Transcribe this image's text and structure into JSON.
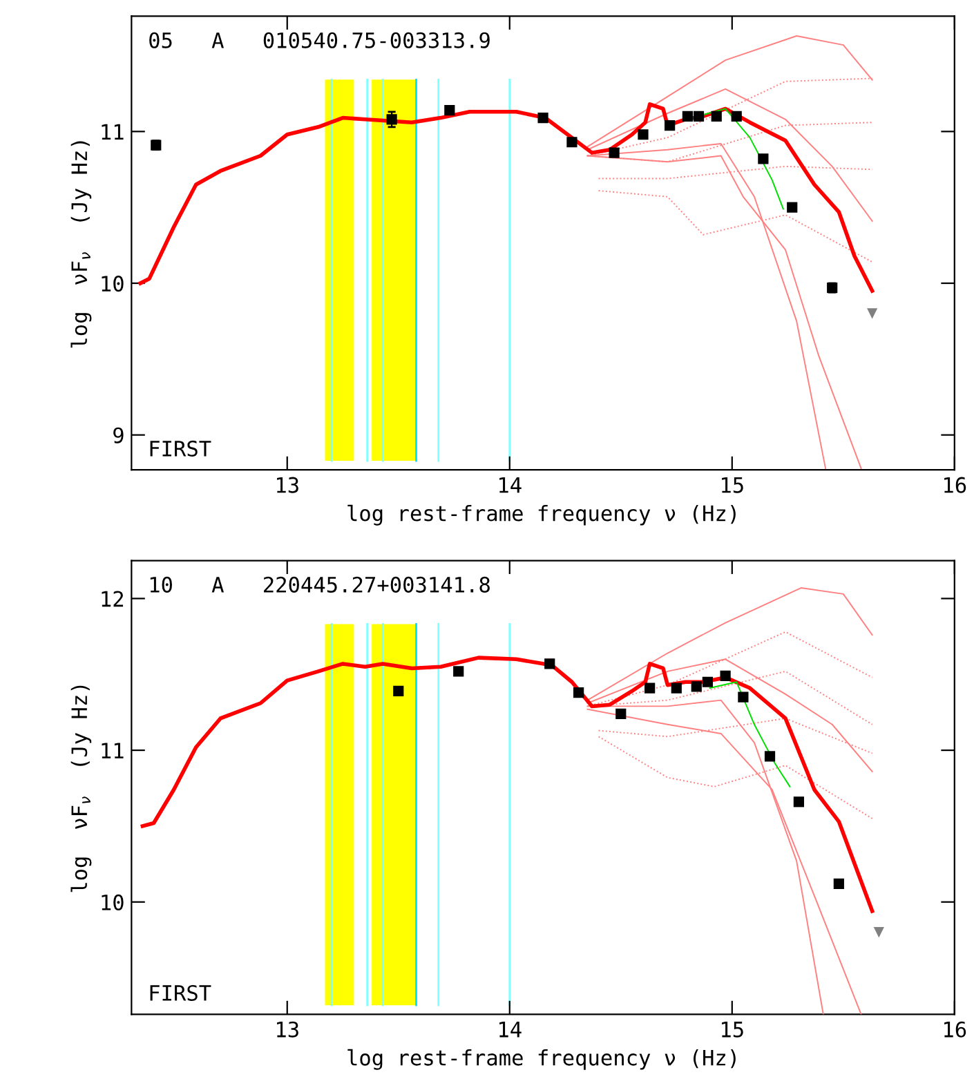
{
  "chart_data": [
    {
      "type": "line",
      "title": "05   A   010540.75-003313.9",
      "xlabel": "log rest-frame frequency ν (Hz)",
      "ylabel": "log  νF$_{ν}$  (Jy Hz)",
      "annotations": [
        "FIRST"
      ],
      "xlim": [
        12.3,
        16.0
      ],
      "ylim": [
        8.77,
        11.76
      ],
      "xticks": [
        13,
        14,
        15,
        16
      ],
      "yticks": [
        9,
        10,
        11
      ],
      "grid": false,
      "legend": false,
      "bands": [
        {
          "axis": "x",
          "from": 13.17,
          "to": 13.3,
          "color": "#ffff00"
        },
        {
          "axis": "x",
          "from": 13.38,
          "to": 13.58,
          "color": "#ffff00"
        }
      ],
      "ref_lines": [
        {
          "axis": "x",
          "value": 13.2,
          "color": "#80ffff"
        },
        {
          "axis": "x",
          "value": 13.36,
          "color": "#80ffff"
        },
        {
          "axis": "x",
          "value": 13.43,
          "color": "#80ffff"
        },
        {
          "axis": "x",
          "value": 13.58,
          "color": "#00e0ff"
        },
        {
          "axis": "x",
          "value": 13.68,
          "color": "#80ffff"
        },
        {
          "axis": "x",
          "value": 14.0,
          "color": "#80ffff"
        }
      ],
      "series": [
        {
          "color": "#ff8080",
          "line_style": "solid",
          "x": [
            14.35,
            14.71,
            14.97,
            15.29,
            15.5,
            15.63
          ],
          "values": [
            10.9,
            11.23,
            11.47,
            11.63,
            11.57,
            11.34
          ]
        },
        {
          "color": "#ff8080",
          "line_style": "solid",
          "x": [
            14.35,
            14.71,
            14.97,
            15.24,
            15.45,
            15.63
          ],
          "values": [
            10.88,
            11.12,
            11.28,
            11.08,
            10.77,
            10.41
          ]
        },
        {
          "color": "#ff8080",
          "line_style": "solid",
          "x": [
            14.35,
            14.71,
            14.95,
            15.1,
            15.29,
            15.42
          ],
          "values": [
            10.84,
            10.88,
            10.92,
            10.57,
            9.75,
            8.78
          ]
        },
        {
          "color": "#ff8080",
          "line_style": "solid",
          "x": [
            14.35,
            14.71,
            14.95,
            15.05,
            15.24,
            15.39,
            15.58
          ],
          "values": [
            10.84,
            10.8,
            10.84,
            10.57,
            10.22,
            9.52,
            8.78
          ]
        },
        {
          "color": "#ff8080",
          "line_style": "dotted",
          "x": [
            14.35,
            14.71,
            15.24,
            15.63
          ],
          "values": [
            10.84,
            10.96,
            11.33,
            11.35
          ]
        },
        {
          "color": "#ff8080",
          "line_style": "dotted",
          "x": [
            14.35,
            14.71,
            15.24,
            15.63
          ],
          "values": [
            10.84,
            10.8,
            11.04,
            11.06
          ]
        },
        {
          "color": "#ff8080",
          "line_style": "dotted",
          "x": [
            14.4,
            14.71,
            15.24,
            15.63
          ],
          "values": [
            10.69,
            10.69,
            10.77,
            10.75
          ]
        },
        {
          "color": "#ff8080",
          "line_style": "dotted",
          "x": [
            14.4,
            14.71,
            14.87,
            15.24,
            15.63
          ],
          "values": [
            10.61,
            10.57,
            10.32,
            10.45,
            10.14
          ]
        },
        {
          "color": "#ff0000",
          "line_style": "solid",
          "x": [
            12.34,
            12.38,
            12.49,
            12.59,
            12.7,
            12.88,
            13.0,
            13.14,
            13.25,
            13.35,
            13.56,
            13.69,
            13.82,
            14.03,
            14.16,
            14.27,
            14.37,
            14.45,
            14.55,
            14.61,
            14.63,
            14.69,
            14.71,
            14.79,
            14.87,
            14.97,
            15.08,
            15.24,
            15.37,
            15.48,
            15.55,
            15.63
          ],
          "values": [
            10.0,
            10.03,
            10.37,
            10.65,
            10.74,
            10.84,
            10.98,
            11.03,
            11.09,
            11.08,
            11.06,
            11.09,
            11.13,
            11.13,
            11.09,
            10.97,
            10.86,
            10.88,
            10.98,
            11.06,
            11.18,
            11.15,
            11.04,
            11.08,
            11.1,
            11.15,
            11.06,
            10.94,
            10.65,
            10.47,
            10.18,
            9.95
          ]
        },
        {
          "color": "#00e000",
          "line_style": "solid",
          "x": [
            14.87,
            14.97,
            15.08,
            15.18,
            15.23
          ],
          "values": [
            11.11,
            11.15,
            10.96,
            10.68,
            10.49
          ]
        },
        {
          "type": "scatter",
          "color": "#000000",
          "marker": "square",
          "x": [
            12.41,
            13.47,
            13.73,
            14.15,
            14.28,
            14.47,
            14.6,
            14.72,
            14.8,
            14.85,
            14.93,
            15.02,
            15.14,
            15.27,
            15.45
          ],
          "values": [
            10.91,
            11.08,
            11.14,
            11.09,
            10.93,
            10.86,
            10.98,
            11.04,
            11.1,
            11.1,
            11.1,
            11.1,
            10.82,
            10.5,
            9.97
          ],
          "errors": [
            0.03,
            0.05,
            null,
            null,
            null,
            null,
            null,
            null,
            null,
            null,
            null,
            null,
            null,
            null,
            0.03
          ]
        },
        {
          "type": "scatter",
          "color": "#808080",
          "marker": "triangle",
          "x": [
            15.63
          ],
          "values": [
            9.8
          ]
        }
      ]
    },
    {
      "type": "line",
      "title": "10   A   220445.27+003141.8",
      "xlabel": "log rest-frame frequency ν (Hz)",
      "ylabel": "log  νF$_{ν}$  (Jy Hz)",
      "annotations": [
        "FIRST"
      ],
      "xlim": [
        12.3,
        16.0
      ],
      "ylim": [
        9.26,
        12.25
      ],
      "xticks": [
        13,
        14,
        15,
        16
      ],
      "yticks": [
        10,
        11,
        12
      ],
      "grid": false,
      "legend": false,
      "bands": [
        {
          "axis": "x",
          "from": 13.17,
          "to": 13.3,
          "color": "#ffff00"
        },
        {
          "axis": "x",
          "from": 13.38,
          "to": 13.58,
          "color": "#ffff00"
        }
      ],
      "ref_lines": [
        {
          "axis": "x",
          "value": 13.2,
          "color": "#80ffff"
        },
        {
          "axis": "x",
          "value": 13.36,
          "color": "#80ffff"
        },
        {
          "axis": "x",
          "value": 13.43,
          "color": "#80ffff"
        },
        {
          "axis": "x",
          "value": 13.58,
          "color": "#00e0ff"
        },
        {
          "axis": "x",
          "value": 13.68,
          "color": "#80ffff"
        },
        {
          "axis": "x",
          "value": 14.0,
          "color": "#80ffff"
        }
      ],
      "series": [
        {
          "color": "#ff8080",
          "line_style": "solid",
          "x": [
            14.35,
            14.71,
            14.97,
            15.31,
            15.5,
            15.63
          ],
          "values": [
            11.33,
            11.64,
            11.84,
            12.07,
            12.03,
            11.76
          ]
        },
        {
          "color": "#ff8080",
          "line_style": "solid",
          "x": [
            14.35,
            14.71,
            14.97,
            15.24,
            15.45,
            15.63
          ],
          "values": [
            11.31,
            11.52,
            11.6,
            11.37,
            11.17,
            10.86
          ]
        },
        {
          "color": "#ff8080",
          "line_style": "solid",
          "x": [
            14.35,
            14.71,
            14.95,
            15.1,
            15.29,
            15.41
          ],
          "values": [
            11.29,
            11.29,
            11.33,
            11.05,
            10.27,
            9.26
          ]
        },
        {
          "color": "#ff8080",
          "line_style": "solid",
          "x": [
            14.35,
            14.71,
            14.95,
            15.18,
            15.37,
            15.58
          ],
          "values": [
            11.27,
            11.17,
            11.11,
            10.74,
            10.04,
            9.26
          ]
        },
        {
          "color": "#ff8080",
          "line_style": "dotted",
          "x": [
            14.35,
            14.71,
            15.24,
            15.63
          ],
          "values": [
            11.29,
            11.43,
            11.78,
            11.48
          ]
        },
        {
          "color": "#ff8080",
          "line_style": "dotted",
          "x": [
            14.35,
            14.71,
            15.24,
            15.63
          ],
          "values": [
            11.29,
            11.33,
            11.52,
            11.17
          ]
        },
        {
          "color": "#ff8080",
          "line_style": "dotted",
          "x": [
            14.4,
            14.71,
            15.24,
            15.63
          ],
          "values": [
            11.13,
            11.09,
            11.21,
            10.98
          ]
        },
        {
          "color": "#ff8080",
          "line_style": "dotted",
          "x": [
            14.4,
            14.71,
            14.92,
            15.24,
            15.63
          ],
          "values": [
            11.09,
            10.82,
            10.76,
            10.9,
            10.55
          ]
        },
        {
          "color": "#ff0000",
          "line_style": "solid",
          "x": [
            12.35,
            12.4,
            12.49,
            12.59,
            12.7,
            12.88,
            13.0,
            13.14,
            13.25,
            13.35,
            13.43,
            13.56,
            13.69,
            13.86,
            14.03,
            14.19,
            14.28,
            14.37,
            14.45,
            14.55,
            14.61,
            14.63,
            14.69,
            14.71,
            14.79,
            14.87,
            14.97,
            15.08,
            15.24,
            15.37,
            15.48,
            15.63
          ],
          "values": [
            10.5,
            10.52,
            10.74,
            11.02,
            11.21,
            11.31,
            11.46,
            11.52,
            11.57,
            11.55,
            11.57,
            11.54,
            11.55,
            11.61,
            11.6,
            11.56,
            11.45,
            11.29,
            11.3,
            11.39,
            11.45,
            11.57,
            11.54,
            11.43,
            11.45,
            11.45,
            11.48,
            11.41,
            11.21,
            10.74,
            10.53,
            9.94
          ]
        },
        {
          "color": "#00e000",
          "line_style": "solid",
          "x": [
            14.9,
            15.02,
            15.1,
            15.19,
            15.26
          ],
          "values": [
            11.41,
            11.45,
            11.17,
            10.92,
            10.76
          ]
        },
        {
          "type": "scatter",
          "color": "#000000",
          "marker": "square",
          "x": [
            13.5,
            13.77,
            14.18,
            14.31,
            14.5,
            14.63,
            14.75,
            14.84,
            14.89,
            14.97,
            15.05,
            15.17,
            15.3,
            15.48
          ],
          "values": [
            11.39,
            11.52,
            11.57,
            11.38,
            11.24,
            11.41,
            11.41,
            11.42,
            11.45,
            11.49,
            11.35,
            10.96,
            10.66,
            10.12
          ]
        },
        {
          "type": "scatter",
          "color": "#808080",
          "marker": "triangle",
          "x": [
            15.66
          ],
          "values": [
            9.8
          ]
        }
      ]
    }
  ]
}
